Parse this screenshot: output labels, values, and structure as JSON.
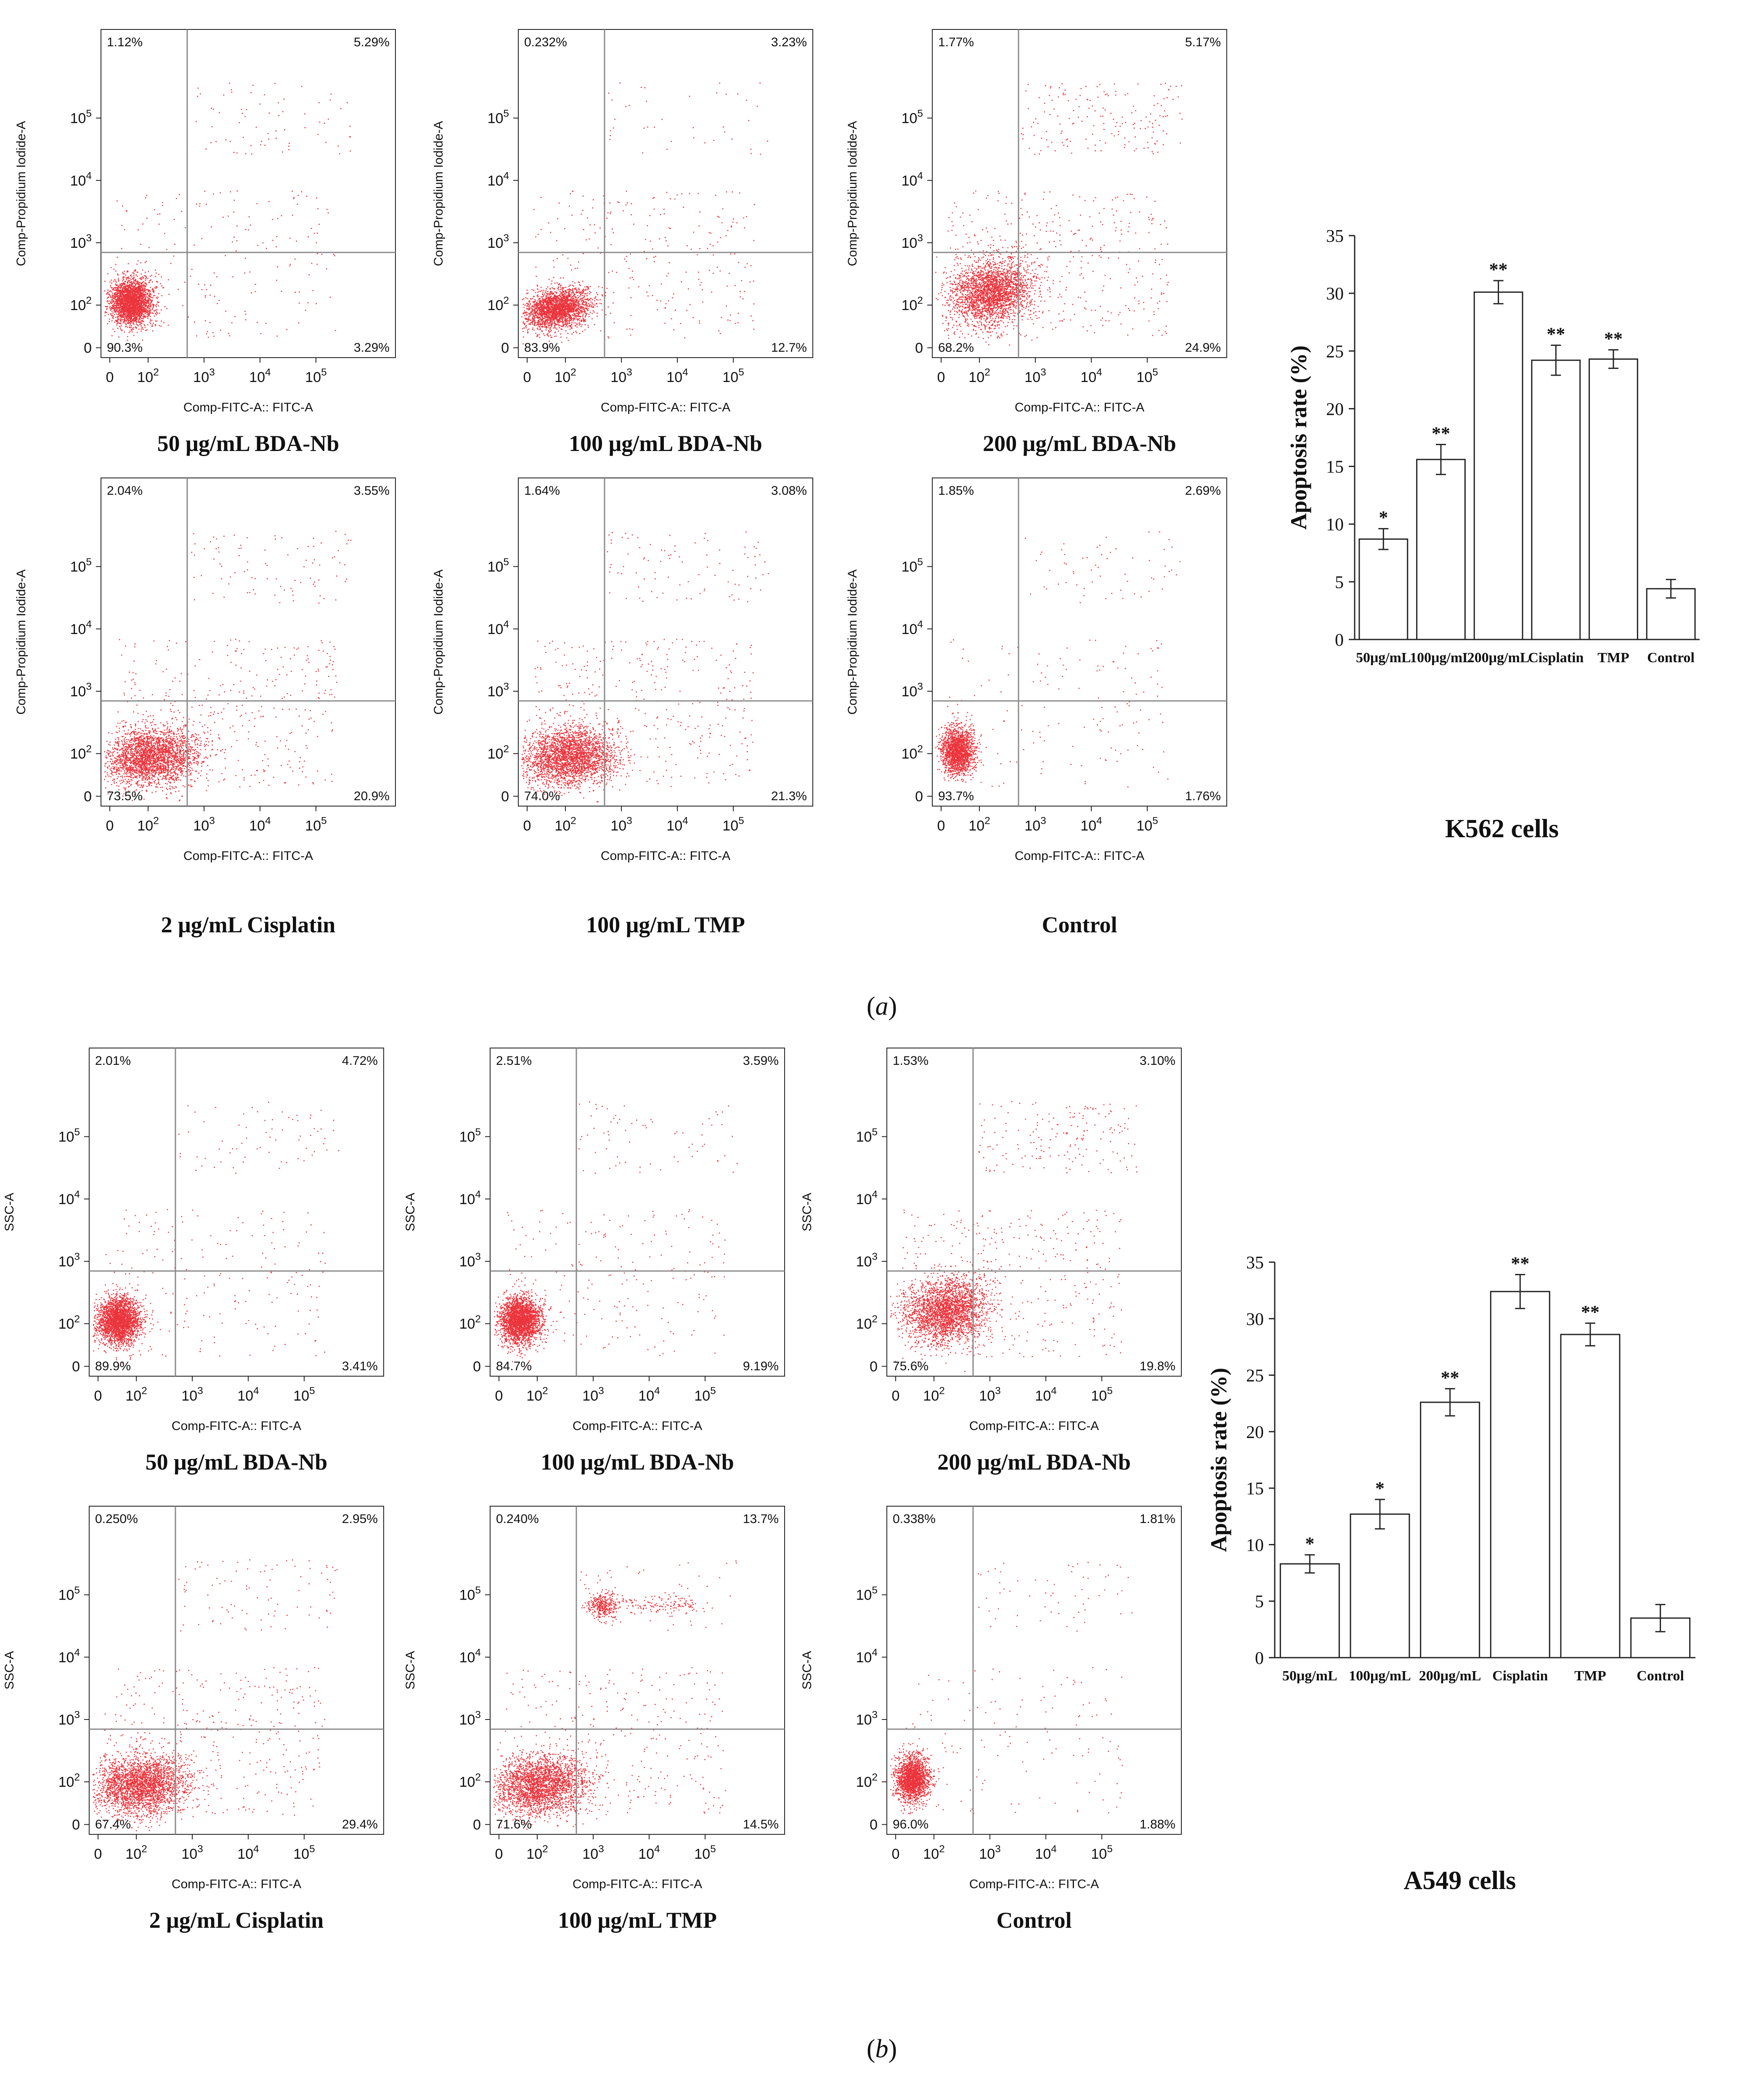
{
  "figure": {
    "panel_labels": [
      {
        "open": "(",
        "letter": "a",
        "close": ")"
      },
      {
        "open": "(",
        "letter": "b",
        "close": ")"
      }
    ]
  },
  "chart_data": [
    {
      "type": "scatter",
      "subtype": "flow-cytometry-quadrant",
      "cell_line": "K562",
      "caption": "50  μg/mL BDA-Nb",
      "xlabel": "Comp-FITC-A:: FITC-A",
      "ylabel": "Comp-Propidium Iodide-A",
      "x_ticks": [
        "0",
        "10^2",
        "10^3",
        "10^4",
        "10^5"
      ],
      "y_ticks": [
        "0",
        "10^2",
        "10^3",
        "10^4",
        "10^5"
      ],
      "gate": {
        "x": 500,
        "y": 700
      },
      "quadrants": {
        "upper_left": "1.12%",
        "upper_right": "5.29%",
        "lower_left": "90.3%",
        "lower_right": "3.29%"
      },
      "population": "compact"
    },
    {
      "type": "scatter",
      "subtype": "flow-cytometry-quadrant",
      "cell_line": "K562",
      "caption": "100  μg/mL BDA-Nb",
      "xlabel": "Comp-FITC-A:: FITC-A",
      "ylabel": "Comp-Propidium Iodide-A",
      "x_ticks": [
        "0",
        "10^2",
        "10^3",
        "10^4",
        "10^5"
      ],
      "y_ticks": [
        "0",
        "10^2",
        "10^3",
        "10^4",
        "10^5"
      ],
      "gate": {
        "x": 500,
        "y": 700
      },
      "quadrants": {
        "upper_left": "0.232%",
        "upper_right": "3.23%",
        "lower_left": "83.9%",
        "lower_right": "12.7%"
      },
      "population": "streak"
    },
    {
      "type": "scatter",
      "subtype": "flow-cytometry-quadrant",
      "cell_line": "K562",
      "caption": "200  μg/mL BDA-Nb",
      "xlabel": "Comp-FITC-A:: FITC-A",
      "ylabel": "Comp-Propidium Iodide-A",
      "x_ticks": [
        "0",
        "10^2",
        "10^3",
        "10^4",
        "10^5"
      ],
      "y_ticks": [
        "0",
        "10^2",
        "10^3",
        "10^4",
        "10^5"
      ],
      "gate": {
        "x": 500,
        "y": 700
      },
      "quadrants": {
        "upper_left": "1.77%",
        "upper_right": "5.17%",
        "lower_left": "68.2%",
        "lower_right": "24.9%"
      },
      "population": "diffuse"
    },
    {
      "type": "scatter",
      "subtype": "flow-cytometry-quadrant",
      "cell_line": "K562",
      "caption": "2 μg/mL Cisplatin",
      "xlabel": "Comp-FITC-A:: FITC-A",
      "ylabel": "Comp-Propidium Iodide-A",
      "x_ticks": [
        "0",
        "10^2",
        "10^3",
        "10^4",
        "10^5"
      ],
      "y_ticks": [
        "0",
        "10^2",
        "10^3",
        "10^4",
        "10^5"
      ],
      "gate": {
        "x": 500,
        "y": 700
      },
      "quadrants": {
        "upper_left": "2.04%",
        "upper_right": "3.55%",
        "lower_left": "73.5%",
        "lower_right": "20.9%"
      },
      "population": "wide"
    },
    {
      "type": "scatter",
      "subtype": "flow-cytometry-quadrant",
      "cell_line": "K562",
      "caption": "100 μg/mL TMP",
      "xlabel": "Comp-FITC-A:: FITC-A",
      "ylabel": "Comp-Propidium Iodide-A",
      "x_ticks": [
        "0",
        "10^2",
        "10^3",
        "10^4",
        "10^5"
      ],
      "y_ticks": [
        "0",
        "10^2",
        "10^3",
        "10^4",
        "10^5"
      ],
      "gate": {
        "x": 500,
        "y": 700
      },
      "quadrants": {
        "upper_left": "1.64%",
        "upper_right": "3.08%",
        "lower_left": "74.0%",
        "lower_right": "21.3%"
      },
      "population": "wide"
    },
    {
      "type": "scatter",
      "subtype": "flow-cytometry-quadrant",
      "cell_line": "K562",
      "caption": "Control",
      "xlabel": "Comp-FITC-A:: FITC-A",
      "ylabel": "Comp-Propidium Iodide-A",
      "x_ticks": [
        "0",
        "10^2",
        "10^3",
        "10^4",
        "10^5"
      ],
      "y_ticks": [
        "0",
        "10^2",
        "10^3",
        "10^4",
        "10^5"
      ],
      "gate": {
        "x": 500,
        "y": 700
      },
      "quadrants": {
        "upper_left": "1.85%",
        "upper_right": "2.69%",
        "lower_left": "93.7%",
        "lower_right": "1.76%"
      },
      "population": "tight"
    },
    {
      "type": "bar",
      "cell_line": "K562",
      "caption": "K562 cells",
      "ylabel": "Apoptosis rate (%)",
      "ylim": [
        0,
        35
      ],
      "y_ticks": [
        0,
        5,
        10,
        15,
        20,
        25,
        30,
        35
      ],
      "categories": [
        "50μg/mL",
        "100μg/mL",
        "200μg/mL",
        "Cisplatin",
        "TMP",
        "Control"
      ],
      "values": [
        8.7,
        15.6,
        30.1,
        24.2,
        24.3,
        4.4
      ],
      "errors": [
        0.9,
        1.3,
        1.0,
        1.3,
        0.8,
        0.8
      ],
      "significance": [
        "*",
        "**",
        "**",
        "**",
        "**",
        ""
      ]
    },
    {
      "type": "scatter",
      "subtype": "flow-cytometry-quadrant",
      "cell_line": "A549",
      "caption": "50  μg/mL BDA-Nb",
      "xlabel": "Comp-FITC-A:: FITC-A",
      "ylabel": "SSC-A",
      "x_ticks": [
        "0",
        "10^2",
        "10^3",
        "10^4",
        "10^5"
      ],
      "y_ticks": [
        "0",
        "10^2",
        "10^3",
        "10^4",
        "10^5"
      ],
      "gate": {
        "x": 500,
        "y": 700
      },
      "quadrants": {
        "upper_left": "2.01%",
        "upper_right": "4.72%",
        "lower_left": "89.9%",
        "lower_right": "3.41%"
      },
      "population": "compact"
    },
    {
      "type": "scatter",
      "subtype": "flow-cytometry-quadrant",
      "cell_line": "A549",
      "caption": "100  μg/mL BDA-Nb",
      "xlabel": "Comp-FITC-A:: FITC-A",
      "ylabel": "SSC-A",
      "x_ticks": [
        "0",
        "10^2",
        "10^3",
        "10^4",
        "10^5"
      ],
      "y_ticks": [
        "0",
        "10^2",
        "10^3",
        "10^4",
        "10^5"
      ],
      "gate": {
        "x": 500,
        "y": 700
      },
      "quadrants": {
        "upper_left": "2.51%",
        "upper_right": "3.59%",
        "lower_left": "84.7%",
        "lower_right": "9.19%"
      },
      "population": "compact"
    },
    {
      "type": "scatter",
      "subtype": "flow-cytometry-quadrant",
      "cell_line": "A549",
      "caption": "200  μg/mL BDA-Nb",
      "xlabel": "Comp-FITC-A:: FITC-A",
      "ylabel": "SSC-A",
      "x_ticks": [
        "0",
        "10^2",
        "10^3",
        "10^4",
        "10^5"
      ],
      "y_ticks": [
        "0",
        "10^2",
        "10^3",
        "10^4",
        "10^5"
      ],
      "gate": {
        "x": 500,
        "y": 700
      },
      "quadrants": {
        "upper_left": "1.53%",
        "upper_right": "3.10%",
        "lower_left": "75.6%",
        "lower_right": "19.8%"
      },
      "population": "diffuse"
    },
    {
      "type": "scatter",
      "subtype": "flow-cytometry-quadrant",
      "cell_line": "A549",
      "caption": "2 μg/mL Cisplatin",
      "xlabel": "Comp-FITC-A:: FITC-A",
      "ylabel": "SSC-A",
      "x_ticks": [
        "0",
        "10^2",
        "10^3",
        "10^4",
        "10^5"
      ],
      "y_ticks": [
        "0",
        "10^2",
        "10^3",
        "10^4",
        "10^5"
      ],
      "gate": {
        "x": 500,
        "y": 700
      },
      "quadrants": {
        "upper_left": "0.250%",
        "upper_right": "2.95%",
        "lower_left": "67.4%",
        "lower_right": "29.4%"
      },
      "population": "wide"
    },
    {
      "type": "scatter",
      "subtype": "flow-cytometry-quadrant",
      "cell_line": "A549",
      "caption": "100 μg/mL TMP",
      "xlabel": "Comp-FITC-A:: FITC-A",
      "ylabel": "SSC-A",
      "x_ticks": [
        "0",
        "10^2",
        "10^3",
        "10^4",
        "10^5"
      ],
      "y_ticks": [
        "0",
        "10^2",
        "10^3",
        "10^4",
        "10^5"
      ],
      "gate": {
        "x": 500,
        "y": 700
      },
      "quadrants": {
        "upper_left": "0.240%",
        "upper_right": "13.7%",
        "lower_left": "71.6%",
        "lower_right": "14.5%"
      },
      "population": "wide-with-upper-cluster"
    },
    {
      "type": "scatter",
      "subtype": "flow-cytometry-quadrant",
      "cell_line": "A549",
      "caption": "Control",
      "xlabel": "Comp-FITC-A:: FITC-A",
      "ylabel": "SSC-A",
      "x_ticks": [
        "0",
        "10^2",
        "10^3",
        "10^4",
        "10^5"
      ],
      "y_ticks": [
        "0",
        "10^2",
        "10^3",
        "10^4",
        "10^5"
      ],
      "gate": {
        "x": 500,
        "y": 700
      },
      "quadrants": {
        "upper_left": "0.338%",
        "upper_right": "1.81%",
        "lower_left": "96.0%",
        "lower_right": "1.88%"
      },
      "population": "tight"
    },
    {
      "type": "bar",
      "cell_line": "A549",
      "caption": "A549 cells",
      "ylabel": "Apoptosis rate (%)",
      "ylim": [
        0,
        35
      ],
      "y_ticks": [
        0,
        5,
        10,
        15,
        20,
        25,
        30,
        35
      ],
      "categories": [
        "50μg/mL",
        "100μg/mL",
        "200μg/mL",
        "Cisplatin",
        "TMP",
        "Control"
      ],
      "values": [
        8.3,
        12.7,
        22.6,
        32.4,
        28.6,
        3.5
      ],
      "errors": [
        0.8,
        1.3,
        1.2,
        1.5,
        1.0,
        1.2
      ],
      "significance": [
        "*",
        "*",
        "**",
        "**",
        "**",
        ""
      ]
    }
  ],
  "colors": {
    "dots": "#e8101a",
    "axis": "#222222",
    "gate": "#8a8a8a",
    "text": "#111111",
    "background": "#ffffff"
  }
}
